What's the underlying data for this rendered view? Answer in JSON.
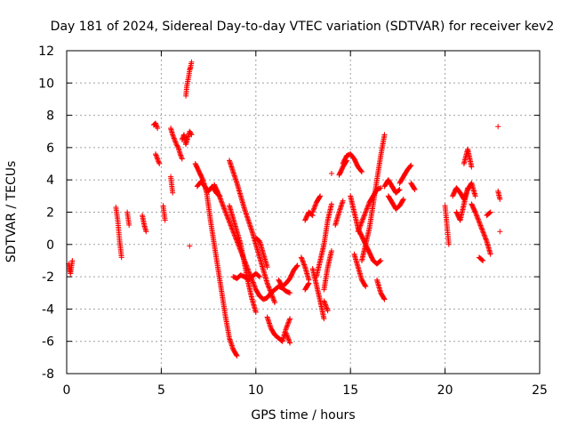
{
  "chart_data": {
    "type": "scatter",
    "title": "Day 181 of 2024, Sidereal Day-to-day VTEC variation (SDTVAR) for receiver kev2",
    "xlabel": "GPS time / hours",
    "ylabel": "SDTVAR / TECUs",
    "xlim": [
      0,
      25
    ],
    "ylim": [
      -8,
      12
    ],
    "x_ticks": [
      0,
      5,
      10,
      15,
      20,
      25
    ],
    "y_ticks": [
      -8,
      -6,
      -4,
      -2,
      0,
      2,
      4,
      6,
      8,
      10,
      12
    ],
    "grid": true,
    "marker": "+",
    "color": "#ff0000",
    "series": [
      {
        "name": "SDTVAR",
        "segments": [
          {
            "x": [
              0.1,
              0.2,
              0.3
            ],
            "y": [
              -1.2,
              -1.8,
              -1.0
            ]
          },
          {
            "x": [
              2.6,
              2.7,
              2.8,
              2.9
            ],
            "y": [
              2.3,
              1.5,
              0.2,
              -0.8
            ]
          },
          {
            "x": [
              3.2,
              3.3
            ],
            "y": [
              2.0,
              1.2
            ]
          },
          {
            "x": [
              4.0,
              4.1,
              4.2
            ],
            "y": [
              1.8,
              1.2,
              0.8
            ]
          },
          {
            "x": [
              4.6,
              4.7,
              4.8
            ],
            "y": [
              7.4,
              7.5,
              7.2
            ]
          },
          {
            "x": [
              4.7,
              4.9
            ],
            "y": [
              5.6,
              5.0
            ]
          },
          {
            "x": [
              5.1,
              5.2
            ],
            "y": [
              2.4,
              1.5
            ]
          },
          {
            "x": [
              5.5,
              5.6,
              5.7,
              5.8,
              5.9,
              6.0,
              6.1
            ],
            "y": [
              7.2,
              6.8,
              6.5,
              6.2,
              6.0,
              5.6,
              5.3
            ]
          },
          {
            "x": [
              5.5,
              5.6
            ],
            "y": [
              4.2,
              3.2
            ]
          },
          {
            "x": [
              6.1,
              6.2,
              6.3,
              6.4,
              6.5,
              6.6
            ],
            "y": [
              6.5,
              6.8,
              6.2,
              6.6,
              7.0,
              6.8
            ]
          },
          {
            "x": [
              6.3,
              6.35,
              6.4,
              6.45,
              6.5,
              6.55,
              6.6
            ],
            "y": [
              9.2,
              9.8,
              10.1,
              10.4,
              10.8,
              11.0,
              11.3
            ]
          },
          {
            "x": [
              6.5
            ],
            "y": [
              -0.1
            ]
          },
          {
            "x": [
              6.8,
              7.0,
              7.2,
              7.4,
              7.6,
              7.8,
              8.0,
              8.2,
              8.4,
              8.6,
              8.8,
              9.0
            ],
            "y": [
              5.0,
              4.5,
              4.0,
              3.2,
              1.5,
              0.0,
              -1.5,
              -3.0,
              -4.5,
              -5.8,
              -6.5,
              -6.9
            ]
          },
          {
            "x": [
              6.9,
              7.1,
              7.3,
              7.5,
              7.7,
              7.9,
              8.1
            ],
            "y": [
              3.6,
              3.9,
              3.6,
              3.3,
              3.6,
              3.2,
              3.0
            ]
          },
          {
            "x": [
              7.8,
              8.0,
              8.2,
              8.4,
              8.6,
              8.8,
              9.0,
              9.2,
              9.4,
              9.6,
              9.8,
              10.0,
              10.2,
              10.4,
              10.6,
              10.8,
              11.0,
              11.2,
              11.4,
              11.6,
              11.8
            ],
            "y": [
              3.7,
              3.2,
              2.6,
              2.0,
              1.4,
              0.8,
              0.2,
              -0.4,
              -1.0,
              -1.6,
              -2.2,
              -2.8,
              -3.2,
              -3.4,
              -3.3,
              -3.0,
              -2.8,
              -2.6,
              -2.7,
              -2.9,
              -3.0
            ]
          },
          {
            "x": [
              8.6,
              8.8,
              9.0,
              9.2,
              9.4,
              9.6,
              9.8,
              10.0,
              10.2,
              10.4,
              10.6,
              10.8,
              11.0
            ],
            "y": [
              5.2,
              4.5,
              3.8,
              3.0,
              2.2,
              1.5,
              0.8,
              0.0,
              -0.8,
              -1.6,
              -2.4,
              -3.0,
              -3.6
            ]
          },
          {
            "x": [
              8.8,
              9.0,
              9.2,
              9.4,
              9.6,
              9.8,
              10.0,
              10.2
            ],
            "y": [
              -2.0,
              -2.1,
              -1.9,
              -2.0,
              -2.2,
              -2.0,
              -1.8,
              -2.0
            ]
          },
          {
            "x": [
              8.6,
              8.8,
              9.0,
              9.2,
              9.4,
              9.6,
              9.8,
              10.0
            ],
            "y": [
              2.4,
              1.6,
              0.8,
              0.0,
              -1.2,
              -2.4,
              -3.4,
              -4.2
            ]
          },
          {
            "x": [
              10.0,
              10.2,
              10.4,
              10.6
            ],
            "y": [
              0.4,
              0.2,
              -0.6,
              -1.4
            ]
          },
          {
            "x": [
              10.6,
              10.8,
              11.0,
              11.2,
              11.4,
              11.6,
              11.8
            ],
            "y": [
              -4.5,
              -5.2,
              -5.6,
              -5.8,
              -6.0,
              -5.2,
              -4.6
            ]
          },
          {
            "x": [
              11.2,
              11.4,
              11.6,
              11.8,
              12.0,
              12.2
            ],
            "y": [
              -2.2,
              -2.6,
              -2.4,
              -2.1,
              -1.6,
              -1.3
            ]
          },
          {
            "x": [
              11.6,
              11.8
            ],
            "y": [
              -5.5,
              -6.1
            ]
          },
          {
            "x": [
              12.6,
              12.8,
              13.0
            ],
            "y": [
              1.5,
              2.0,
              1.8
            ]
          },
          {
            "x": [
              13.0,
              13.2,
              13.4
            ],
            "y": [
              2.0,
              2.6,
              3.0
            ]
          },
          {
            "x": [
              12.4,
              12.6,
              12.8
            ],
            "y": [
              -0.8,
              -1.4,
              -2.2
            ]
          },
          {
            "x": [
              12.6,
              12.8
            ],
            "y": [
              -2.8,
              -2.4
            ]
          },
          {
            "x": [
              13.0,
              13.2,
              13.4,
              13.6
            ],
            "y": [
              -1.5,
              -2.5,
              -3.5,
              -4.6
            ]
          },
          {
            "x": [
              13.2,
              13.4,
              13.6,
              13.8,
              14.0
            ],
            "y": [
              -2.0,
              -1.0,
              0.0,
              1.5,
              2.5
            ]
          },
          {
            "x": [
              13.6,
              13.8,
              14.0
            ],
            "y": [
              -2.8,
              -1.4,
              -0.4
            ]
          },
          {
            "x": [
              13.6,
              13.8
            ],
            "y": [
              -3.5,
              -4.1
            ]
          },
          {
            "x": [
              14.0
            ],
            "y": [
              4.4
            ]
          },
          {
            "x": [
              14.2,
              14.4,
              14.6
            ],
            "y": [
              1.2,
              2.0,
              2.7
            ]
          },
          {
            "x": [
              14.4,
              14.6,
              14.8
            ],
            "y": [
              4.3,
              4.8,
              5.2
            ]
          },
          {
            "x": [
              14.6,
              14.8,
              15.0,
              15.2,
              15.4,
              15.6
            ],
            "y": [
              5.0,
              5.5,
              5.6,
              5.3,
              4.8,
              4.5
            ]
          },
          {
            "x": [
              15.0,
              15.2,
              15.4,
              15.6,
              15.8,
              16.0,
              16.2,
              16.4,
              16.6
            ],
            "y": [
              3.0,
              2.0,
              1.0,
              0.5,
              0.0,
              -0.5,
              -1.0,
              -1.2,
              -1.0
            ]
          },
          {
            "x": [
              15.2,
              15.4,
              15.6,
              15.8
            ],
            "y": [
              -0.6,
              -1.4,
              -2.2,
              -2.6
            ]
          },
          {
            "x": [
              15.4,
              15.6,
              15.8,
              16.0,
              16.2,
              16.4,
              16.6
            ],
            "y": [
              0.8,
              1.4,
              2.0,
              2.6,
              3.0,
              3.4,
              3.5
            ]
          },
          {
            "x": [
              15.6,
              15.8,
              16.0,
              16.2,
              16.4,
              16.6,
              16.8
            ],
            "y": [
              -1.0,
              0.0,
              1.0,
              2.5,
              4.0,
              5.5,
              6.8
            ]
          },
          {
            "x": [
              16.4,
              16.6,
              16.8
            ],
            "y": [
              -2.2,
              -3.0,
              -3.4
            ]
          },
          {
            "x": [
              16.8,
              17.0,
              17.2,
              17.4,
              17.6
            ],
            "y": [
              3.6,
              4.0,
              3.6,
              3.2,
              3.4
            ]
          },
          {
            "x": [
              17.0,
              17.2,
              17.4,
              17.6,
              17.8
            ],
            "y": [
              3.0,
              2.6,
              2.2,
              2.4,
              2.8
            ]
          },
          {
            "x": [
              17.6,
              17.8,
              18.0,
              18.2
            ],
            "y": [
              3.8,
              4.2,
              4.6,
              4.9
            ]
          },
          {
            "x": [
              18.2,
              18.4
            ],
            "y": [
              3.8,
              3.4
            ]
          },
          {
            "x": [
              20.0,
              20.2
            ],
            "y": [
              2.4,
              0.0
            ]
          },
          {
            "x": [
              20.4,
              20.6,
              20.8,
              21.0,
              21.2,
              21.4,
              21.6
            ],
            "y": [
              3.0,
              3.5,
              3.2,
              2.8,
              3.4,
              3.8,
              3.0
            ]
          },
          {
            "x": [
              20.6,
              20.8,
              21.0,
              21.2
            ],
            "y": [
              2.0,
              1.5,
              2.5,
              3.5
            ]
          },
          {
            "x": [
              21.0,
              21.2,
              21.4
            ],
            "y": [
              5.0,
              5.9,
              4.8
            ]
          },
          {
            "x": [
              21.4,
              21.6,
              21.8,
              22.0,
              22.2,
              22.4
            ],
            "y": [
              2.5,
              2.0,
              1.4,
              0.8,
              0.2,
              -0.6
            ]
          },
          {
            "x": [
              21.8,
              22.0
            ],
            "y": [
              -0.8,
              -1.0
            ]
          },
          {
            "x": [
              22.2,
              22.4
            ],
            "y": [
              1.8,
              2.0
            ]
          },
          {
            "x": [
              22.8,
              22.9
            ],
            "y": [
              3.3,
              2.8
            ]
          },
          {
            "x": [
              22.8
            ],
            "y": [
              7.3
            ]
          },
          {
            "x": [
              22.9
            ],
            "y": [
              0.8
            ]
          }
        ]
      }
    ]
  }
}
